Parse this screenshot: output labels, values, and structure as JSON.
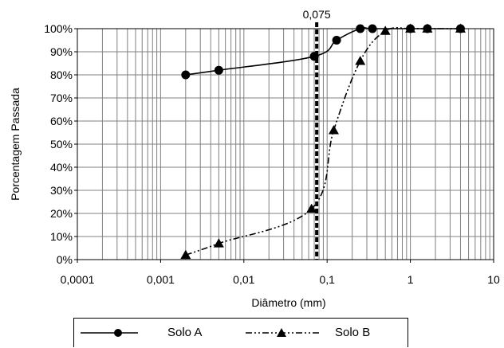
{
  "chart_data": {
    "type": "scatter",
    "xscale": "log",
    "xlim": [
      0.0001,
      10
    ],
    "ylim": [
      0,
      100
    ],
    "xlabel": "Diâmetro (mm)",
    "ylabel": "Porcentagem Passada",
    "x_ticks": [
      "0,0001",
      "0,001",
      "0,01",
      "0,1",
      "1",
      "10"
    ],
    "y_ticks": [
      "0%",
      "10%",
      "20%",
      "30%",
      "40%",
      "50%",
      "60%",
      "70%",
      "80%",
      "90%",
      "100%"
    ],
    "grid": true,
    "reference_line": {
      "x": 0.075,
      "label": "0,075",
      "style": "dashed-bold"
    },
    "legend_position": "bottom",
    "series": [
      {
        "name": "Solo A",
        "marker": "circle",
        "line": "solid",
        "points": [
          [
            0.002,
            80
          ],
          [
            0.005,
            82
          ],
          [
            0.07,
            88
          ],
          [
            0.13,
            95
          ],
          [
            0.25,
            100
          ],
          [
            0.35,
            100
          ],
          [
            1.0,
            100
          ],
          [
            1.6,
            100
          ],
          [
            4.0,
            100
          ]
        ]
      },
      {
        "name": "Solo B",
        "marker": "triangle",
        "line": "dash-dot-dot",
        "points": [
          [
            0.002,
            2
          ],
          [
            0.005,
            7
          ],
          [
            0.065,
            22
          ],
          [
            0.12,
            56
          ],
          [
            0.25,
            86
          ],
          [
            0.5,
            99
          ],
          [
            1.0,
            100
          ],
          [
            1.6,
            100
          ],
          [
            4.0,
            100
          ]
        ]
      }
    ]
  }
}
